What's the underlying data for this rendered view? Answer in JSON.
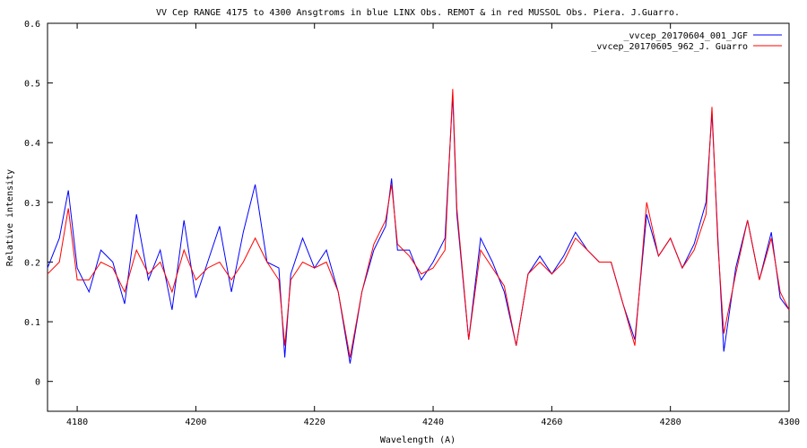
{
  "chart_data": {
    "type": "line",
    "title": "VV Cep  RANGE 4175  to 4300  Ansgtroms  in blue LINX  Obs. REMOT &  in red MUSSOL Obs. Piera.  J.Guarro.",
    "xlabel": "Wavelength (A)",
    "ylabel": "Relative intensity",
    "xlim": [
      4175,
      4300
    ],
    "ylim": [
      -0.05,
      0.6
    ],
    "x_ticks": [
      4180,
      4200,
      4220,
      4240,
      4260,
      4280,
      4300
    ],
    "y_ticks": [
      0,
      0.1,
      0.2,
      0.3,
      0.4,
      0.5,
      0.6
    ],
    "x_tick_labels": [
      "4180",
      "4200",
      "4220",
      "4240",
      "4260",
      "4280",
      "4300"
    ],
    "y_tick_labels": [
      "0",
      "0.1",
      "0.2",
      "0.3",
      "0.4",
      "0.5",
      "0.6"
    ],
    "grid": false,
    "legend_position": "top-right",
    "series": [
      {
        "name": "_vvcep_20170604_001_JGF",
        "color": "#0000ff",
        "points": [
          [
            4175,
            0.19
          ],
          [
            4177,
            0.24
          ],
          [
            4178.5,
            0.32
          ],
          [
            4180,
            0.19
          ],
          [
            4182,
            0.15
          ],
          [
            4184,
            0.22
          ],
          [
            4186,
            0.2
          ],
          [
            4188,
            0.13
          ],
          [
            4190,
            0.28
          ],
          [
            4192,
            0.17
          ],
          [
            4194,
            0.22
          ],
          [
            4196,
            0.12
          ],
          [
            4198,
            0.27
          ],
          [
            4200,
            0.14
          ],
          [
            4202,
            0.2
          ],
          [
            4204,
            0.26
          ],
          [
            4206,
            0.15
          ],
          [
            4208,
            0.25
          ],
          [
            4210,
            0.33
          ],
          [
            4212,
            0.2
          ],
          [
            4214,
            0.19
          ],
          [
            4215,
            0.04
          ],
          [
            4216,
            0.18
          ],
          [
            4218,
            0.24
          ],
          [
            4220,
            0.19
          ],
          [
            4222,
            0.22
          ],
          [
            4224,
            0.15
          ],
          [
            4226,
            0.03
          ],
          [
            4228,
            0.15
          ],
          [
            4230,
            0.22
          ],
          [
            4232,
            0.26
          ],
          [
            4233,
            0.34
          ],
          [
            4234,
            0.22
          ],
          [
            4236,
            0.22
          ],
          [
            4238,
            0.17
          ],
          [
            4240,
            0.2
          ],
          [
            4242,
            0.24
          ],
          [
            4243.3,
            0.48
          ],
          [
            4244,
            0.28
          ],
          [
            4246,
            0.07
          ],
          [
            4248,
            0.24
          ],
          [
            4250,
            0.2
          ],
          [
            4252,
            0.15
          ],
          [
            4254,
            0.06
          ],
          [
            4256,
            0.18
          ],
          [
            4258,
            0.21
          ],
          [
            4260,
            0.18
          ],
          [
            4262,
            0.21
          ],
          [
            4264,
            0.25
          ],
          [
            4266,
            0.22
          ],
          [
            4268,
            0.2
          ],
          [
            4270,
            0.2
          ],
          [
            4272,
            0.13
          ],
          [
            4274,
            0.07
          ],
          [
            4276,
            0.28
          ],
          [
            4278,
            0.21
          ],
          [
            4280,
            0.24
          ],
          [
            4282,
            0.19
          ],
          [
            4284,
            0.23
          ],
          [
            4286,
            0.3
          ],
          [
            4287,
            0.45
          ],
          [
            4288,
            0.24
          ],
          [
            4289,
            0.05
          ],
          [
            4291,
            0.19
          ],
          [
            4293,
            0.27
          ],
          [
            4295,
            0.17
          ],
          [
            4297,
            0.25
          ],
          [
            4298.5,
            0.14
          ],
          [
            4300,
            0.12
          ]
        ]
      },
      {
        "name": "_vvcep_20170605_962_J. Guarro",
        "color": "#ff0000",
        "points": [
          [
            4175,
            0.18
          ],
          [
            4177,
            0.2
          ],
          [
            4178.5,
            0.29
          ],
          [
            4180,
            0.17
          ],
          [
            4182,
            0.17
          ],
          [
            4184,
            0.2
          ],
          [
            4186,
            0.19
          ],
          [
            4188,
            0.15
          ],
          [
            4190,
            0.22
          ],
          [
            4192,
            0.18
          ],
          [
            4194,
            0.2
          ],
          [
            4196,
            0.15
          ],
          [
            4198,
            0.22
          ],
          [
            4200,
            0.17
          ],
          [
            4202,
            0.19
          ],
          [
            4204,
            0.2
          ],
          [
            4206,
            0.17
          ],
          [
            4208,
            0.2
          ],
          [
            4210,
            0.24
          ],
          [
            4212,
            0.2
          ],
          [
            4214,
            0.17
          ],
          [
            4215,
            0.06
          ],
          [
            4216,
            0.17
          ],
          [
            4218,
            0.2
          ],
          [
            4220,
            0.19
          ],
          [
            4222,
            0.2
          ],
          [
            4224,
            0.15
          ],
          [
            4226,
            0.04
          ],
          [
            4228,
            0.15
          ],
          [
            4230,
            0.23
          ],
          [
            4232,
            0.27
          ],
          [
            4233,
            0.33
          ],
          [
            4234,
            0.23
          ],
          [
            4236,
            0.21
          ],
          [
            4238,
            0.18
          ],
          [
            4240,
            0.19
          ],
          [
            4242,
            0.22
          ],
          [
            4243.3,
            0.49
          ],
          [
            4244,
            0.29
          ],
          [
            4246,
            0.07
          ],
          [
            4248,
            0.22
          ],
          [
            4250,
            0.19
          ],
          [
            4252,
            0.16
          ],
          [
            4254,
            0.06
          ],
          [
            4256,
            0.18
          ],
          [
            4258,
            0.2
          ],
          [
            4260,
            0.18
          ],
          [
            4262,
            0.2
          ],
          [
            4264,
            0.24
          ],
          [
            4266,
            0.22
          ],
          [
            4268,
            0.2
          ],
          [
            4270,
            0.2
          ],
          [
            4272,
            0.13
          ],
          [
            4274,
            0.06
          ],
          [
            4276,
            0.3
          ],
          [
            4278,
            0.21
          ],
          [
            4280,
            0.24
          ],
          [
            4282,
            0.19
          ],
          [
            4284,
            0.22
          ],
          [
            4286,
            0.28
          ],
          [
            4287,
            0.46
          ],
          [
            4288,
            0.23
          ],
          [
            4289,
            0.08
          ],
          [
            4291,
            0.18
          ],
          [
            4293,
            0.27
          ],
          [
            4295,
            0.17
          ],
          [
            4297,
            0.24
          ],
          [
            4298.5,
            0.15
          ],
          [
            4300,
            0.12
          ]
        ]
      }
    ]
  }
}
